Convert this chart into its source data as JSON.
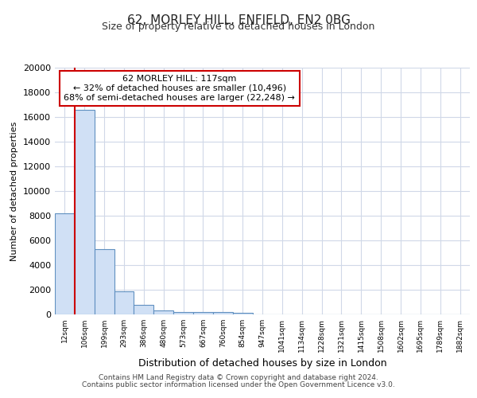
{
  "title1": "62, MORLEY HILL, ENFIELD, EN2 0BG",
  "title2": "Size of property relative to detached houses in London",
  "xlabel": "Distribution of detached houses by size in London",
  "ylabel": "Number of detached properties",
  "bar_labels": [
    "12sqm",
    "106sqm",
    "199sqm",
    "293sqm",
    "386sqm",
    "480sqm",
    "573sqm",
    "667sqm",
    "760sqm",
    "854sqm",
    "947sqm",
    "1041sqm",
    "1134sqm",
    "1228sqm",
    "1321sqm",
    "1415sqm",
    "1508sqm",
    "1602sqm",
    "1695sqm",
    "1789sqm",
    "1882sqm"
  ],
  "bar_values": [
    8200,
    16600,
    5300,
    1850,
    750,
    320,
    220,
    190,
    200,
    160,
    0,
    0,
    0,
    0,
    0,
    0,
    0,
    0,
    0,
    0,
    0
  ],
  "bar_color": "#d0e0f5",
  "bar_edge_color": "#6090c0",
  "annotation_line1": "62 MORLEY HILL: 117sqm",
  "annotation_line2": "← 32% of detached houses are smaller (10,496)",
  "annotation_line3": "68% of semi-detached houses are larger (22,248) →",
  "ylim": [
    0,
    20000
  ],
  "yticks": [
    0,
    2000,
    4000,
    6000,
    8000,
    10000,
    12000,
    14000,
    16000,
    18000,
    20000
  ],
  "footer_line1": "Contains HM Land Registry data © Crown copyright and database right 2024.",
  "footer_line2": "Contains public sector information licensed under the Open Government Licence v3.0.",
  "bg_color": "#ffffff",
  "plot_bg_color": "#ffffff",
  "grid_color": "#d0d8e8",
  "annotation_box_color": "#ffffff",
  "annotation_box_edge": "#cc0000",
  "red_line_color": "#cc0000",
  "red_line_x": 0.5
}
